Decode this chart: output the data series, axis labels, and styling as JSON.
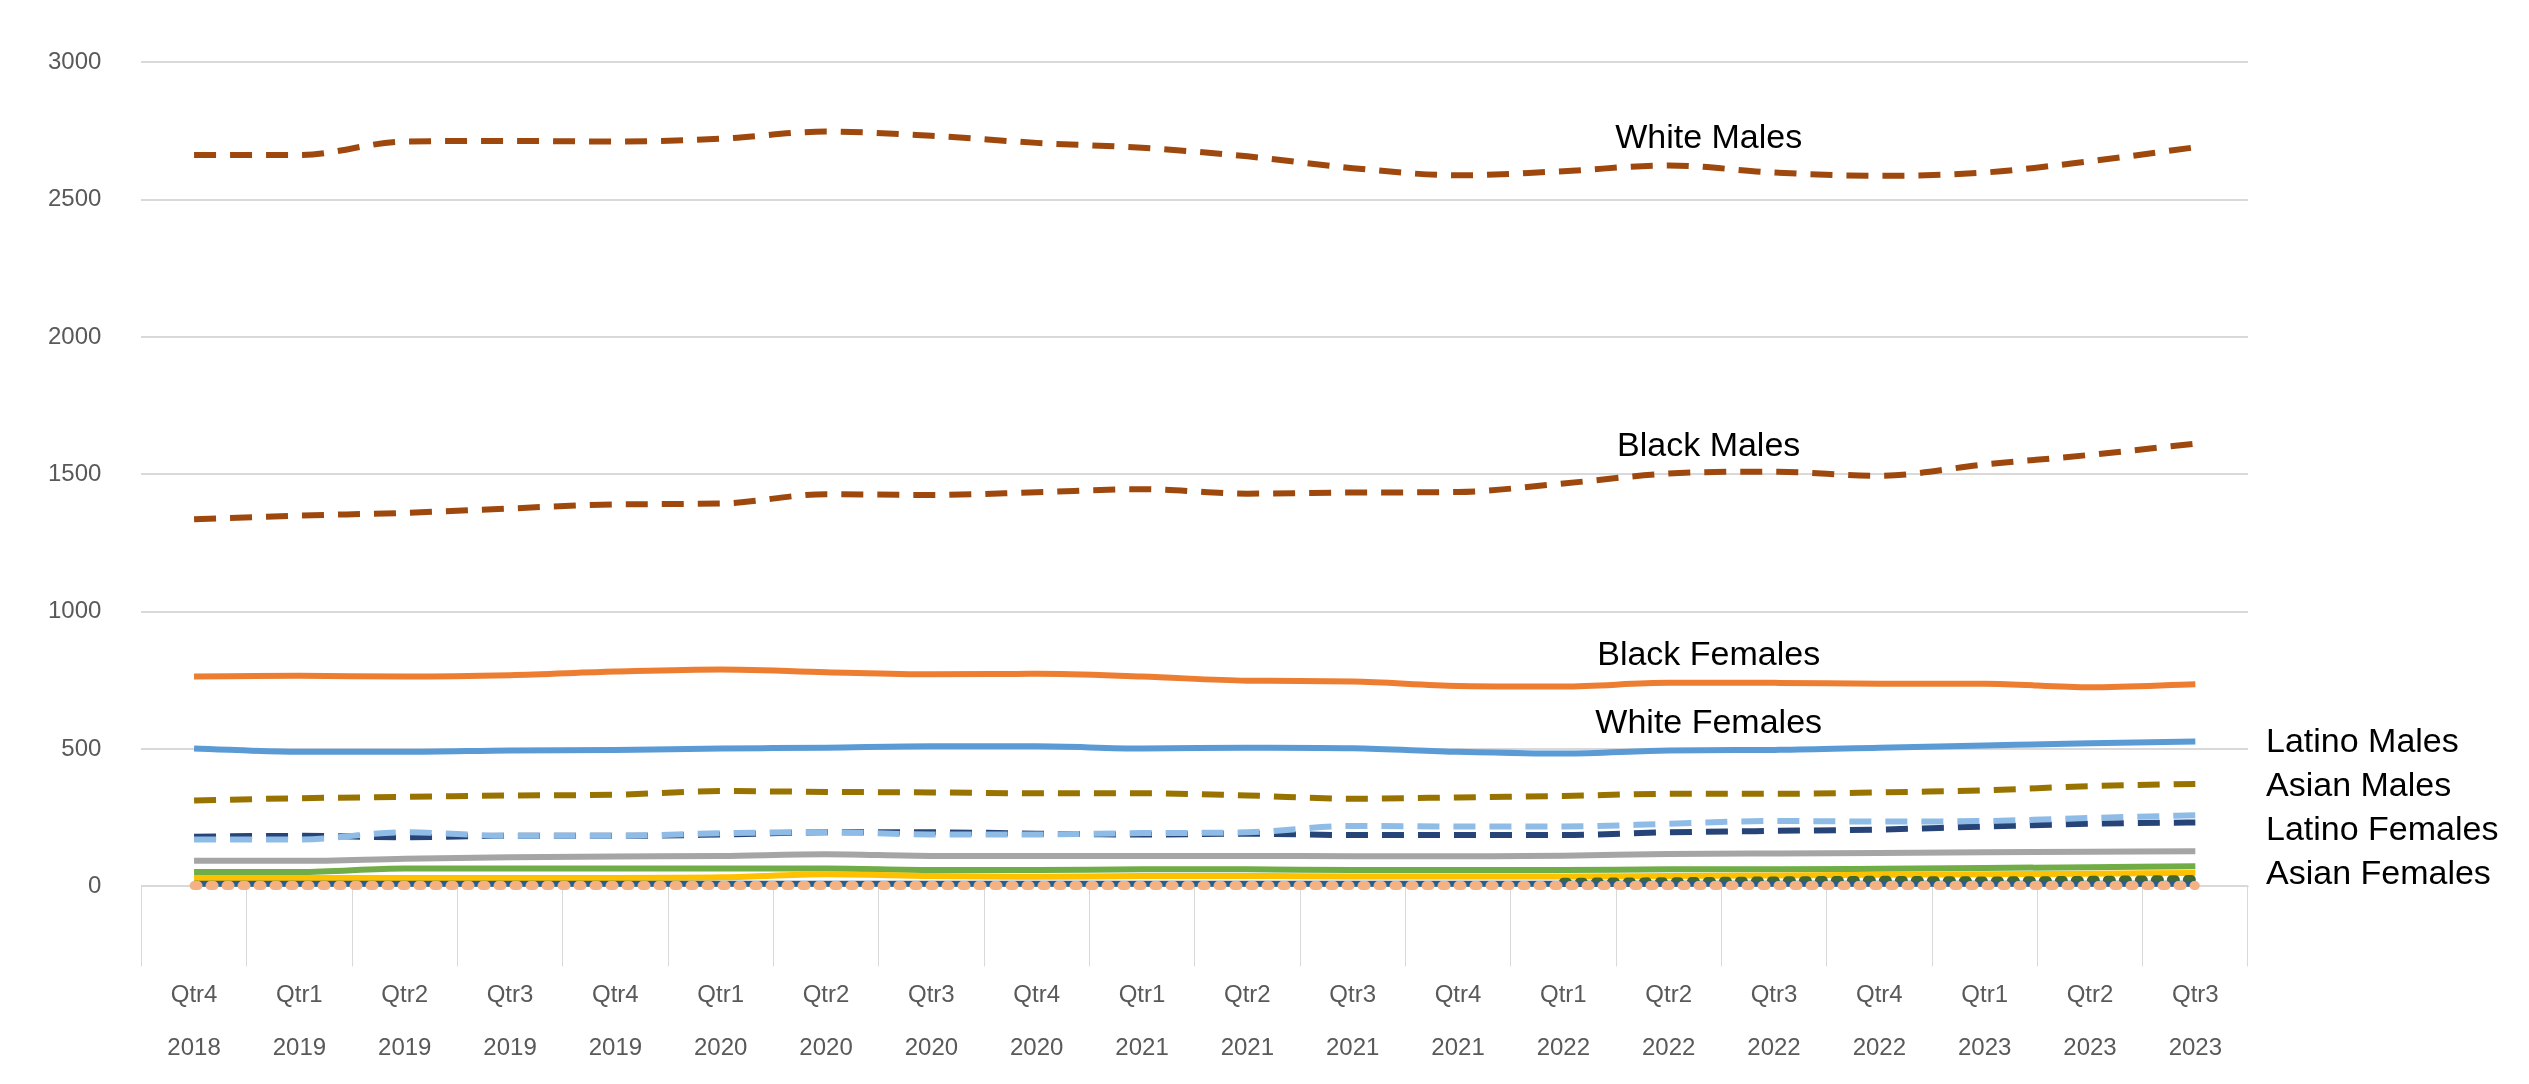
{
  "chart_data": {
    "type": "line",
    "categories": [
      "Qtr4 2018",
      "Qtr1 2019",
      "Qtr2 2019",
      "Qtr3 2019",
      "Qtr4 2019",
      "Qtr1 2020",
      "Qtr2 2020",
      "Qtr3 2020",
      "Qtr4 2020",
      "Qtr1 2021",
      "Qtr2 2021",
      "Qtr3 2021",
      "Qtr4 2021",
      "Qtr1 2022",
      "Qtr2 2022",
      "Qtr3 2022",
      "Qtr4 2022",
      "Qtr1 2023",
      "Qtr2 2023",
      "Qtr3 2023"
    ],
    "ylim": [
      0,
      3000
    ],
    "yticks": [
      0,
      500,
      1000,
      1500,
      2000,
      2500,
      3000
    ],
    "grid": "y",
    "legend": false,
    "marker": "none",
    "series": [
      {
        "name": "White Males",
        "color": "#9e480e",
        "line_style": "dashed",
        "values": [
          2663,
          2663,
          2712,
          2714,
          2712,
          2722,
          2748,
          2733,
          2707,
          2689,
          2658,
          2615,
          2589,
          2604,
          2625,
          2599,
          2587,
          2599,
          2640,
          2691
        ]
      },
      {
        "name": "Black Males",
        "color": "#9e480e",
        "line_style": "dashed",
        "values": [
          1337,
          1350,
          1360,
          1376,
          1391,
          1394,
          1428,
          1425,
          1435,
          1446,
          1430,
          1434,
          1436,
          1467,
          1503,
          1510,
          1495,
          1536,
          1571,
          1612
        ]
      },
      {
        "name": "Black Females",
        "color": "#ed7d31",
        "line_style": "solid",
        "values": [
          764,
          767,
          764,
          769,
          782,
          790,
          780,
          772,
          774,
          764,
          749,
          746,
          730,
          728,
          741,
          741,
          738,
          738,
          725,
          736
        ]
      },
      {
        "name": "White Females",
        "color": "#5b9bd5",
        "line_style": "solid",
        "values": [
          502,
          490,
          490,
          495,
          497,
          502,
          505,
          510,
          510,
          502,
          505,
          503,
          490,
          484,
          495,
          497,
          505,
          513,
          521,
          528
        ]
      },
      {
        "color": "#997300",
        "line_style": "dashed",
        "values": [
          313,
          321,
          326,
          331,
          334,
          347,
          344,
          342,
          339,
          339,
          331,
          319,
          324,
          329,
          337,
          337,
          342,
          350,
          365,
          373
        ]
      },
      {
        "color": "#264478",
        "line_style": "dashed",
        "values": [
          181,
          184,
          179,
          184,
          184,
          189,
          197,
          197,
          192,
          189,
          192,
          187,
          187,
          187,
          197,
          202,
          207,
          218,
          228,
          233
        ]
      },
      {
        "color": "#8fbce6",
        "line_style": "dashed",
        "values": [
          171,
          171,
          197,
          184,
          184,
          194,
          197,
          189,
          189,
          194,
          197,
          220,
          218,
          218,
          228,
          238,
          236,
          238,
          249,
          259
        ]
      },
      {
        "color": "#a5a5a5",
        "line_style": "solid",
        "values": [
          93,
          93,
          101,
          106,
          109,
          111,
          117,
          111,
          111,
          111,
          111,
          110,
          110,
          112,
          118,
          120,
          122,
          124,
          126,
          128
        ]
      },
      {
        "color": "#70ad47",
        "line_style": "solid",
        "values": [
          52,
          52,
          65,
          65,
          65,
          65,
          65,
          60,
          60,
          62,
          62,
          60,
          60,
          60,
          62,
          62,
          64,
          67,
          70,
          73
        ]
      },
      {
        "color": "#ffc000",
        "line_style": "solid",
        "values": [
          31,
          31,
          31,
          31,
          31,
          33,
          44,
          38,
          35,
          38,
          38,
          36,
          36,
          36,
          38,
          40,
          42,
          44,
          46,
          49
        ]
      },
      {
        "color": "#43682b",
        "line_style": "dotted",
        "values": [
          null,
          null,
          null,
          null,
          null,
          null,
          null,
          null,
          null,
          null,
          null,
          null,
          null,
          15,
          17,
          20,
          22,
          20,
          22,
          25
        ]
      },
      {
        "color": "#255e91",
        "line_style": "solid",
        "values": [
          10,
          10,
          10,
          10,
          10,
          10,
          10,
          10,
          10,
          10,
          10,
          10,
          10,
          10,
          10,
          10,
          10,
          10,
          10,
          10
        ]
      },
      {
        "color": "#f4b183",
        "line_style": "dotted",
        "values": [
          3,
          3,
          3,
          3,
          3,
          3,
          3,
          3,
          3,
          3,
          3,
          3,
          3,
          3,
          3,
          3,
          3,
          3,
          3,
          3
        ]
      }
    ],
    "annotations": [
      "Latino Males",
      "Asian Males",
      "Latino Females",
      "Asian Females"
    ]
  }
}
